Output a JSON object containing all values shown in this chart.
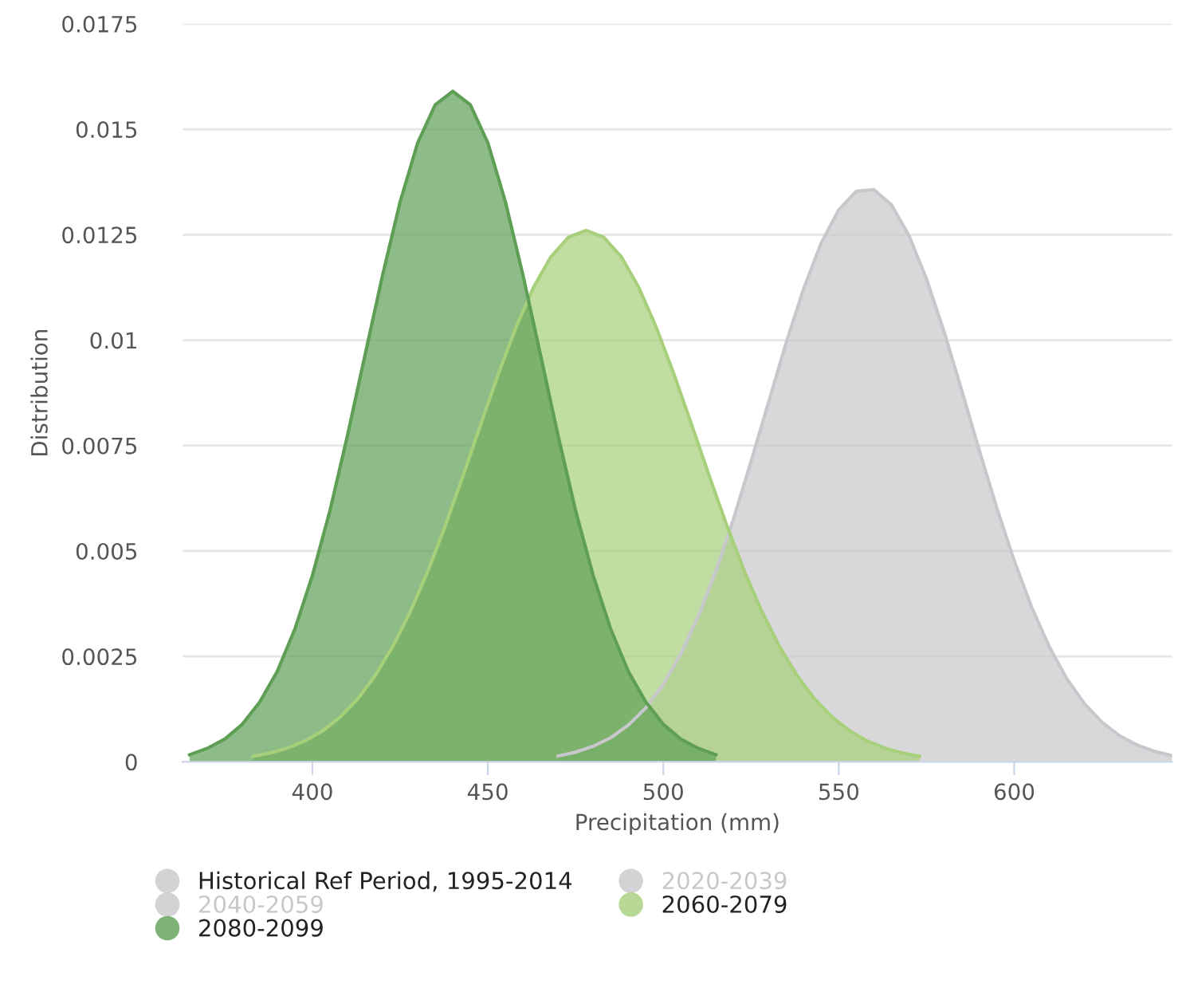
{
  "chart_data": {
    "type": "area",
    "xlabel": "Precipitation (mm)",
    "ylabel": "Distribution",
    "xlim": [
      363,
      645
    ],
    "xticks": [
      400,
      450,
      500,
      550,
      600
    ],
    "ylim": [
      0,
      0.0175
    ],
    "yticks": [
      0,
      0.0025,
      0.005,
      0.0075,
      0.01,
      0.0125,
      0.015,
      0.0175
    ],
    "grid": "y",
    "legend": "bottom left",
    "series": [
      {
        "name": "Historical Ref Period, 1995-2014",
        "color": "#c8c8cc",
        "x": [
          470,
          475,
          480,
          485,
          490,
          495,
          500,
          505,
          510,
          515,
          520,
          525,
          530,
          535,
          540,
          545,
          550,
          555,
          560,
          565,
          570,
          575,
          580,
          585,
          590,
          595,
          600,
          605,
          610,
          615,
          620,
          625,
          630,
          635,
          640,
          645
        ],
        "values": [
          0.00014,
          0.00023,
          0.00037,
          0.00057,
          0.00087,
          0.00128,
          0.00184,
          0.00256,
          0.00346,
          0.00453,
          0.00576,
          0.00712,
          0.00853,
          0.00993,
          0.01122,
          0.0123,
          0.01309,
          0.01353,
          0.01357,
          0.01321,
          0.01248,
          0.01145,
          0.0102,
          0.00882,
          0.0074,
          0.00603,
          0.00477,
          0.00366,
          0.00273,
          0.00197,
          0.00138,
          0.00094,
          0.00062,
          0.0004,
          0.00025,
          0.00015
        ]
      },
      {
        "name": "2020-2039",
        "color": "#c8c8cc"
      },
      {
        "name": "2040-2059",
        "color": "#c8c8cc"
      },
      {
        "name": "2060-2079",
        "color": "#a6d07a",
        "x": [
          383,
          388,
          393,
          398,
          403,
          408,
          413,
          418,
          423,
          428,
          433,
          438,
          443,
          448,
          453,
          458,
          463,
          468,
          473,
          478,
          483,
          488,
          493,
          498,
          503,
          508,
          513,
          518,
          523,
          528,
          533,
          538,
          543,
          548,
          553,
          558,
          563,
          568,
          573
        ],
        "values": [
          0.00013,
          0.00021,
          0.00033,
          0.0005,
          0.00074,
          0.00107,
          0.0015,
          0.00206,
          0.00275,
          0.00358,
          0.00454,
          0.00563,
          0.0068,
          0.00801,
          0.0092,
          0.0103,
          0.01125,
          0.01198,
          0.01244,
          0.0126,
          0.01244,
          0.01198,
          0.01125,
          0.0103,
          0.0092,
          0.00801,
          0.0068,
          0.00563,
          0.00454,
          0.00358,
          0.00275,
          0.00206,
          0.0015,
          0.00107,
          0.00074,
          0.0005,
          0.00033,
          0.00021,
          0.00013
        ]
      },
      {
        "name": "2080-2099",
        "color": "#5e9f55",
        "x": [
          365,
          370,
          375,
          380,
          385,
          390,
          395,
          400,
          405,
          410,
          415,
          420,
          425,
          430,
          435,
          440,
          445,
          450,
          455,
          460,
          465,
          470,
          475,
          480,
          485,
          490,
          495,
          500,
          505,
          510,
          515
        ],
        "values": [
          0.00017,
          0.00032,
          0.00054,
          0.00089,
          0.00142,
          0.00215,
          0.00315,
          0.00442,
          0.00596,
          0.00774,
          0.00965,
          0.01154,
          0.01328,
          0.01468,
          0.01558,
          0.0159,
          0.01558,
          0.01468,
          0.01328,
          0.01154,
          0.00965,
          0.00774,
          0.00596,
          0.00442,
          0.00315,
          0.00215,
          0.00142,
          0.00089,
          0.00054,
          0.00032,
          0.00017
        ]
      }
    ]
  }
}
